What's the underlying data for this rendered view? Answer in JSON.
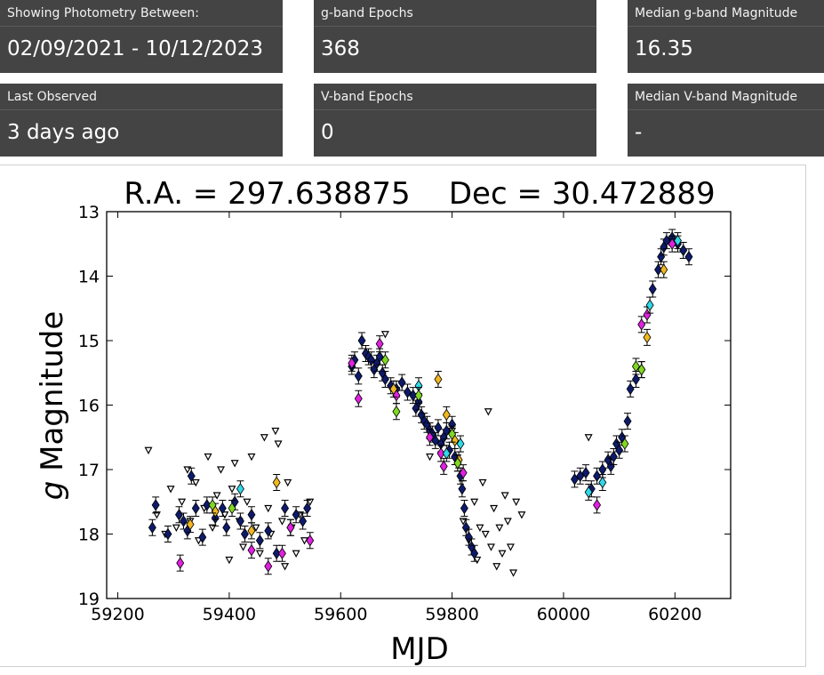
{
  "cards": [
    {
      "label": "Showing Photometry Between:",
      "value": "02/09/2021 - 10/12/2023"
    },
    {
      "label": "g-band Epochs",
      "value": "368"
    },
    {
      "label": "Median g-band Magnitude",
      "value": "16.35"
    },
    {
      "label": "Last Observed",
      "value": "3 days ago"
    },
    {
      "label": "V-band Epochs",
      "value": "0"
    },
    {
      "label": "Median V-band Magnitude",
      "value": "-"
    }
  ],
  "chart_data": {
    "type": "scatter",
    "title": "R.A. = 297.638875    Dec = 30.472889",
    "xlabel": "MJD",
    "ylabel_italic": "g",
    "ylabel": " Magnitude",
    "xlim": [
      59180,
      60300
    ],
    "ylim": [
      19,
      13
    ],
    "y_inverted": true,
    "xticks": [
      59200,
      59400,
      59600,
      59800,
      60000,
      60200
    ],
    "yticks": [
      13,
      14,
      15,
      16,
      17,
      18,
      19
    ],
    "grid": false,
    "colors": {
      "navy": "#0d1a6b",
      "magenta": "#e020e0",
      "cyan": "#30d8e8",
      "yellow": "#f0b820",
      "green": "#80d820"
    },
    "upper_limits": [
      [
        59255,
        16.7
      ],
      [
        59270,
        17.7
      ],
      [
        59285,
        18.0
      ],
      [
        59295,
        17.3
      ],
      [
        59305,
        17.9
      ],
      [
        59315,
        17.5
      ],
      [
        59325,
        17.0
      ],
      [
        59330,
        17.8
      ],
      [
        59340,
        17.2
      ],
      [
        59345,
        18.1
      ],
      [
        59355,
        17.6
      ],
      [
        59362,
        16.8
      ],
      [
        59370,
        17.9
      ],
      [
        59378,
        17.4
      ],
      [
        59385,
        17.0
      ],
      [
        59392,
        17.7
      ],
      [
        59400,
        18.4
      ],
      [
        59405,
        17.3
      ],
      [
        59410,
        16.9
      ],
      [
        59418,
        17.8
      ],
      [
        59425,
        18.2
      ],
      [
        59432,
        17.5
      ],
      [
        59440,
        16.8
      ],
      [
        59448,
        17.9
      ],
      [
        59455,
        18.3
      ],
      [
        59463,
        16.5
      ],
      [
        59470,
        17.6
      ],
      [
        59475,
        18.0
      ],
      [
        59483,
        16.4
      ],
      [
        59488,
        16.6
      ],
      [
        59495,
        17.8
      ],
      [
        59500,
        18.5
      ],
      [
        59505,
        17.2
      ],
      [
        59512,
        17.9
      ],
      [
        59520,
        18.3
      ],
      [
        59527,
        17.7
      ],
      [
        59535,
        18.1
      ],
      [
        59545,
        17.5
      ],
      [
        59680,
        14.9
      ],
      [
        59760,
        16.8
      ],
      [
        59800,
        16.4
      ],
      [
        59820,
        17.8
      ],
      [
        59830,
        18.1
      ],
      [
        59840,
        17.5
      ],
      [
        59845,
        18.4
      ],
      [
        59850,
        17.9
      ],
      [
        59855,
        17.2
      ],
      [
        59860,
        18.0
      ],
      [
        59865,
        16.1
      ],
      [
        59870,
        18.2
      ],
      [
        59875,
        17.6
      ],
      [
        59880,
        18.5
      ],
      [
        59885,
        17.9
      ],
      [
        59890,
        18.3
      ],
      [
        59895,
        17.4
      ],
      [
        59900,
        17.8
      ],
      [
        59905,
        18.2
      ],
      [
        59910,
        18.6
      ],
      [
        59915,
        17.5
      ],
      [
        59925,
        17.7
      ],
      [
        60045,
        16.5
      ]
    ],
    "detections": [
      {
        "name": "navy",
        "points": [
          [
            59262,
            17.9
          ],
          [
            59268,
            17.55
          ],
          [
            59290,
            18.0
          ],
          [
            59310,
            17.7
          ],
          [
            59318,
            17.8
          ],
          [
            59325,
            17.95
          ],
          [
            59332,
            17.1
          ],
          [
            59340,
            17.6
          ],
          [
            59352,
            18.05
          ],
          [
            59360,
            17.55
          ],
          [
            59375,
            17.75
          ],
          [
            59388,
            17.6
          ],
          [
            59395,
            17.9
          ],
          [
            59410,
            17.5
          ],
          [
            59420,
            17.8
          ],
          [
            59428,
            18.0
          ],
          [
            59440,
            17.7
          ],
          [
            59455,
            18.1
          ],
          [
            59470,
            17.95
          ],
          [
            59485,
            18.3
          ],
          [
            59500,
            17.6
          ],
          [
            59510,
            17.9
          ],
          [
            59520,
            17.7
          ],
          [
            59532,
            17.8
          ],
          [
            59540,
            17.6
          ],
          [
            59620,
            15.4
          ],
          [
            59625,
            15.3
          ],
          [
            59632,
            15.55
          ],
          [
            59638,
            15.0
          ],
          [
            59645,
            15.2
          ],
          [
            59650,
            15.25
          ],
          [
            59655,
            15.3
          ],
          [
            59660,
            15.45
          ],
          [
            59665,
            15.35
          ],
          [
            59670,
            15.25
          ],
          [
            59675,
            15.5
          ],
          [
            59680,
            15.6
          ],
          [
            59690,
            15.7
          ],
          [
            59700,
            15.75
          ],
          [
            59710,
            15.65
          ],
          [
            59720,
            15.8
          ],
          [
            59730,
            15.85
          ],
          [
            59735,
            16.05
          ],
          [
            59740,
            15.95
          ],
          [
            59745,
            16.15
          ],
          [
            59750,
            16.25
          ],
          [
            59755,
            16.3
          ],
          [
            59760,
            16.4
          ],
          [
            59765,
            16.45
          ],
          [
            59770,
            16.55
          ],
          [
            59775,
            16.35
          ],
          [
            59780,
            16.6
          ],
          [
            59785,
            16.5
          ],
          [
            59790,
            16.4
          ],
          [
            59795,
            16.7
          ],
          [
            59800,
            16.3
          ],
          [
            59805,
            16.8
          ],
          [
            59810,
            16.9
          ],
          [
            59815,
            17.1
          ],
          [
            59818,
            17.3
          ],
          [
            59822,
            17.6
          ],
          [
            59825,
            17.9
          ],
          [
            59830,
            18.05
          ],
          [
            59835,
            18.2
          ],
          [
            59840,
            18.3
          ],
          [
            60020,
            17.15
          ],
          [
            60030,
            17.1
          ],
          [
            60040,
            17.05
          ],
          [
            60050,
            17.3
          ],
          [
            60060,
            17.1
          ],
          [
            60070,
            17.0
          ],
          [
            60080,
            16.85
          ],
          [
            60085,
            16.95
          ],
          [
            60090,
            16.8
          ],
          [
            60095,
            16.6
          ],
          [
            60100,
            16.7
          ],
          [
            60105,
            16.5
          ],
          [
            60115,
            16.25
          ],
          [
            60120,
            15.75
          ],
          [
            60130,
            15.6
          ],
          [
            60140,
            15.45
          ],
          [
            60160,
            14.2
          ],
          [
            60170,
            13.9
          ],
          [
            60175,
            13.7
          ],
          [
            60180,
            13.55
          ],
          [
            60185,
            13.45
          ],
          [
            60195,
            13.4
          ],
          [
            60205,
            13.5
          ],
          [
            60215,
            13.6
          ],
          [
            60225,
            13.7
          ]
        ]
      },
      {
        "name": "magenta",
        "points": [
          [
            59312,
            18.45
          ],
          [
            59440,
            18.25
          ],
          [
            59470,
            18.5
          ],
          [
            59495,
            18.3
          ],
          [
            59510,
            17.9
          ],
          [
            59545,
            18.1
          ],
          [
            59620,
            15.35
          ],
          [
            59632,
            15.9
          ],
          [
            59670,
            15.05
          ],
          [
            59700,
            15.85
          ],
          [
            59760,
            16.5
          ],
          [
            59780,
            16.75
          ],
          [
            59785,
            16.95
          ],
          [
            59820,
            17.05
          ],
          [
            60060,
            17.55
          ],
          [
            60140,
            14.75
          ],
          [
            60150,
            14.6
          ],
          [
            60195,
            13.5
          ]
        ]
      },
      {
        "name": "cyan",
        "points": [
          [
            59420,
            17.3
          ],
          [
            59740,
            15.7
          ],
          [
            59790,
            16.75
          ],
          [
            59815,
            16.6
          ],
          [
            60045,
            17.35
          ],
          [
            60070,
            17.2
          ],
          [
            60155,
            14.45
          ],
          [
            60205,
            13.45
          ]
        ]
      },
      {
        "name": "yellow",
        "points": [
          [
            59330,
            17.85
          ],
          [
            59375,
            17.65
          ],
          [
            59440,
            17.95
          ],
          [
            59485,
            17.2
          ],
          [
            59695,
            15.75
          ],
          [
            59775,
            15.6
          ],
          [
            59790,
            16.15
          ],
          [
            59805,
            16.55
          ],
          [
            59812,
            16.85
          ],
          [
            60150,
            14.95
          ],
          [
            60180,
            13.9
          ]
        ]
      },
      {
        "name": "green",
        "points": [
          [
            59370,
            17.55
          ],
          [
            59405,
            17.6
          ],
          [
            59680,
            15.3
          ],
          [
            59700,
            16.1
          ],
          [
            59740,
            15.85
          ],
          [
            59800,
            16.45
          ],
          [
            59810,
            16.9
          ],
          [
            60110,
            16.6
          ],
          [
            60130,
            15.4
          ],
          [
            60140,
            15.45
          ]
        ]
      }
    ]
  }
}
